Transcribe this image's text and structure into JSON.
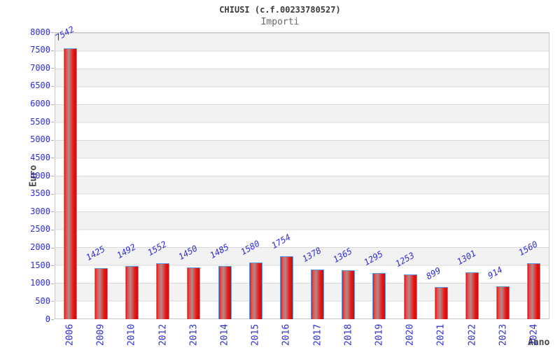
{
  "chart_data": {
    "type": "bar",
    "title": "CHIUSI (c.f.00233780527)",
    "subtitle": "Importi",
    "xlabel": "Anno",
    "ylabel": "Euro",
    "categories": [
      "2006",
      "2009",
      "2010",
      "2012",
      "2013",
      "2014",
      "2015",
      "2016",
      "2017",
      "2018",
      "2019",
      "2020",
      "2021",
      "2022",
      "2023",
      "2024"
    ],
    "values": [
      7542,
      1425,
      1492,
      1552,
      1450,
      1485,
      1580,
      1754,
      1378,
      1365,
      1295,
      1253,
      899,
      1301,
      914,
      1560
    ],
    "value_labels": [
      "7542",
      "1425",
      "1492",
      "1552",
      "1450",
      "1485",
      "1580",
      "1754",
      "1378",
      "1365",
      "1295",
      "1253",
      "899",
      "1301",
      "914",
      "1560"
    ],
    "ylim": [
      0,
      8000
    ],
    "ytick_step": 500,
    "yticks": [
      0,
      500,
      1000,
      1500,
      2000,
      2500,
      3000,
      3500,
      4000,
      4500,
      5000,
      5500,
      6000,
      6500,
      7000,
      7500,
      8000
    ],
    "legend": "none",
    "grid": "alternating horizontal bands every 500",
    "colors": {
      "bar_fill": "#e01111",
      "bar_sheen": "#b28989",
      "bar_border": "#5b9ee6",
      "axis_text": "#2e2ed2",
      "title_text": "#3a3a3a",
      "subtitle_text": "#666666",
      "axis_title_text": "#454545",
      "band_gray": "#f2f2f2",
      "band_white": "#ffffff",
      "grid_line": "#d9d9d9",
      "plot_border": "#c9c9c9",
      "background": "#ffffff"
    }
  }
}
